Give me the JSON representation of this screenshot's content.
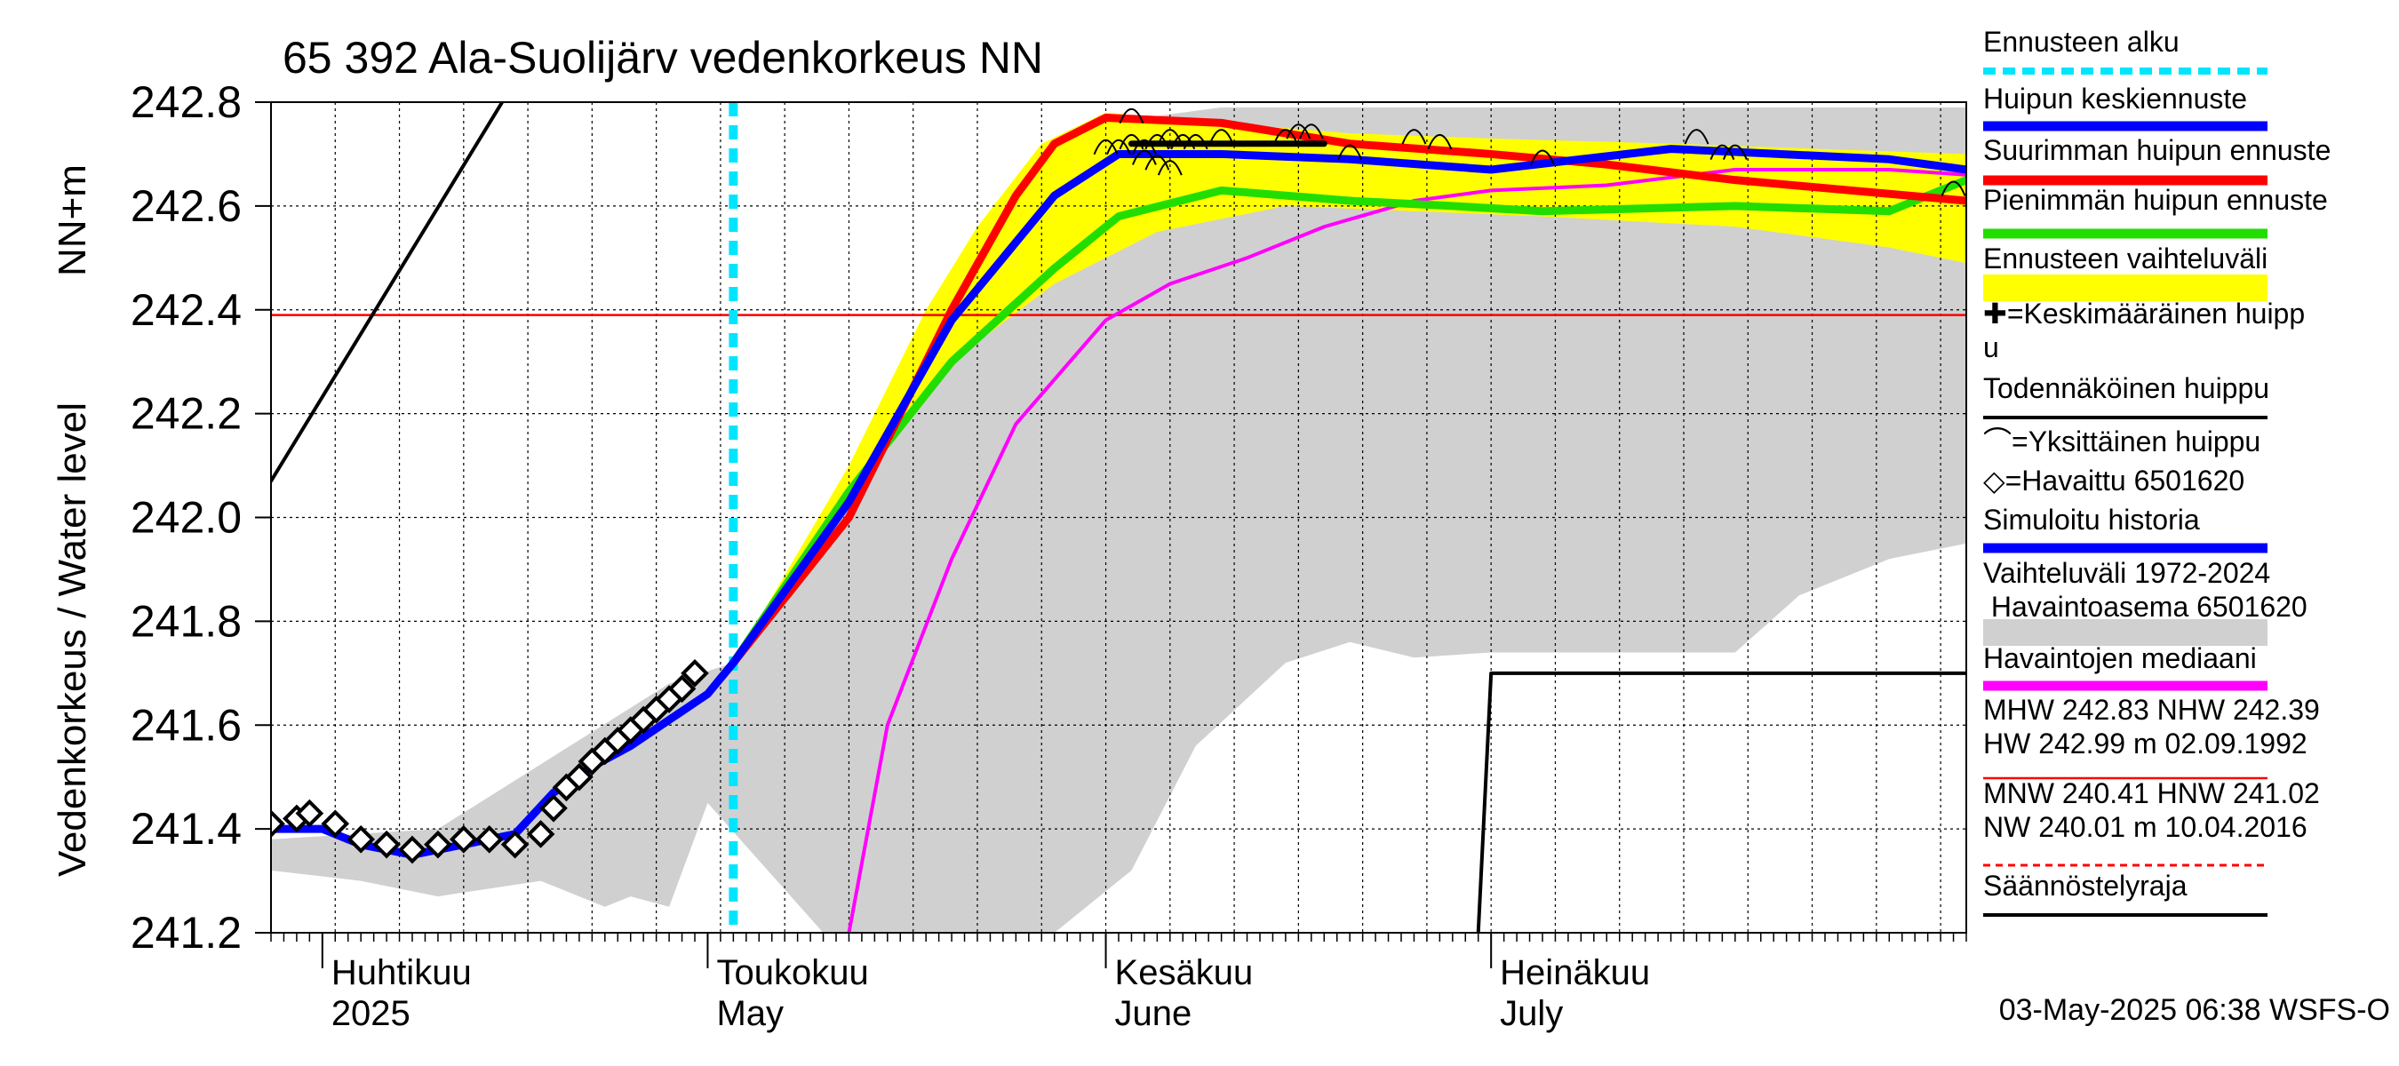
{
  "chart_data": {
    "type": "line",
    "title": "65 392 Ala-Suolijärv vedenkorkeus NN",
    "ylabel": "Vedenkorkeus / Water level",
    "yunit": "NN+m",
    "ylim": [
      241.2,
      242.8
    ],
    "yticks": [
      "242.8",
      "242.6",
      "242.4",
      "242.2",
      "242.0",
      "241.8",
      "241.6",
      "241.4",
      "241.2"
    ],
    "xlim": [
      "2025-03-28",
      "2025-08-07"
    ],
    "months": [
      {
        "fi": "Huhtikuu",
        "en": "2025",
        "date": "2025-04-01"
      },
      {
        "fi": "Toukokuu",
        "en": "May",
        "date": "2025-05-01"
      },
      {
        "fi": "Kesäkuu",
        "en": "June",
        "date": "2025-06-01"
      },
      {
        "fi": "Heinäkuu",
        "en": "July",
        "date": "2025-07-01"
      }
    ],
    "grid": true,
    "legend_position": "right",
    "forecast_start": "2025-05-03",
    "reference_line": {
      "label": "NHW 242.39",
      "value": 242.39,
      "color": "#ff0000"
    },
    "legend": [
      {
        "label": "Ennusteen alku",
        "color": "#00e5ff",
        "style": "dashed"
      },
      {
        "label": "Huipun keskiennuste",
        "color": "#0000ff",
        "style": "line"
      },
      {
        "label": "Suurimman huipun ennuste",
        "color": "#ff0000",
        "style": "line"
      },
      {
        "label": "Pienimmän huipun ennuste",
        "color": "#22dd00",
        "style": "line"
      },
      {
        "label": "Ennusteen vaihteluväli",
        "color": "#ffff00",
        "style": "band"
      },
      {
        "label": "✚=Keskimääräinen huipp u",
        "color": "#000000",
        "style": "none"
      },
      {
        "label": "Todennäköinen huippu",
        "color": "#000000",
        "style": "line"
      },
      {
        "label": "⌒=Yksittäinen huippu",
        "color": "#000000",
        "style": "none"
      },
      {
        "label": "◇=Havaittu 6501620",
        "color": "#000000",
        "style": "none"
      },
      {
        "label": "Simuloitu historia",
        "color": "#0000ff",
        "style": "line"
      },
      {
        "label": "Vaihteluväli 1972-2024 Havaintoasema 6501620",
        "color": "#d0d0d0",
        "style": "band"
      },
      {
        "label": "Havaintojen mediaani",
        "color": "#ff00ff",
        "style": "line"
      },
      {
        "label": "MHW 242.83 NHW 242.39 HW 242.99 m 02.09.1992",
        "color": "#ff0000",
        "style": "thin"
      },
      {
        "label": "MNW 240.41 HNW 241.02 NW 240.01 m 10.04.2016",
        "color": "#ff0000",
        "style": "dotted"
      },
      {
        "label": "Säännöstelyraja",
        "color": "#000000",
        "style": "line"
      }
    ],
    "footer": "03-May-2025 06:38 WSFS-O",
    "series": [
      {
        "key": "history_band_upper",
        "color": "#d0d0d0",
        "x": [
          "2025-03-28",
          "2025-04-10",
          "2025-04-28",
          "2025-05-03",
          "2025-05-10",
          "2025-05-20",
          "2025-05-25",
          "2025-06-01",
          "2025-06-10",
          "2025-06-20",
          "2025-07-01",
          "2025-07-15",
          "2025-08-07"
        ],
        "y": [
          241.38,
          241.4,
          241.68,
          241.72,
          241.98,
          242.35,
          242.52,
          242.76,
          242.79,
          242.79,
          242.79,
          242.79,
          242.79
        ]
      },
      {
        "key": "history_band_lower",
        "color": "#d0d0d0",
        "x": [
          "2025-03-28",
          "2025-04-04",
          "2025-04-10",
          "2025-04-18",
          "2025-04-23",
          "2025-04-25",
          "2025-04-28",
          "2025-05-01",
          "2025-05-10",
          "2025-05-20",
          "2025-05-25",
          "2025-05-28",
          "2025-06-03",
          "2025-06-08",
          "2025-06-15",
          "2025-06-20",
          "2025-06-25",
          "2025-07-01",
          "2025-07-10",
          "2025-07-20",
          "2025-07-25",
          "2025-08-01",
          "2025-08-07"
        ],
        "y": [
          241.32,
          241.3,
          241.27,
          241.3,
          241.25,
          241.27,
          241.25,
          241.45,
          241.2,
          241.2,
          241.2,
          241.2,
          241.32,
          241.56,
          241.72,
          241.76,
          241.73,
          241.74,
          241.74,
          241.74,
          241.85,
          241.92,
          241.95
        ]
      },
      {
        "key": "forecast_band_upper",
        "color": "#ffff00",
        "x": [
          "2025-05-03",
          "2025-05-12",
          "2025-05-18",
          "2025-05-22",
          "2025-05-27",
          "2025-06-01",
          "2025-06-10",
          "2025-06-20",
          "2025-07-01",
          "2025-07-15",
          "2025-08-07"
        ],
        "y": [
          241.72,
          242.1,
          242.4,
          242.56,
          242.72,
          242.78,
          242.76,
          242.74,
          242.73,
          242.72,
          242.7
        ]
      },
      {
        "key": "forecast_band_lower",
        "color": "#ffff00",
        "x": [
          "2025-05-03",
          "2025-05-12",
          "2025-05-20",
          "2025-05-28",
          "2025-06-05",
          "2025-06-15",
          "2025-06-25",
          "2025-07-05",
          "2025-07-20",
          "2025-08-01",
          "2025-08-07"
        ],
        "y": [
          241.72,
          242.05,
          242.3,
          242.45,
          242.55,
          242.6,
          242.59,
          242.58,
          242.56,
          242.52,
          242.49
        ]
      },
      {
        "key": "median",
        "color": "#ff00ff",
        "x": [
          "2025-05-12",
          "2025-05-15",
          "2025-05-20",
          "2025-05-25",
          "2025-06-01",
          "2025-06-06",
          "2025-06-12",
          "2025-06-18",
          "2025-06-25",
          "2025-07-01",
          "2025-07-10",
          "2025-07-20",
          "2025-08-01",
          "2025-08-07"
        ],
        "y": [
          241.2,
          241.6,
          241.92,
          242.18,
          242.38,
          242.45,
          242.5,
          242.56,
          242.61,
          242.63,
          242.64,
          242.67,
          242.67,
          242.66
        ]
      },
      {
        "key": "regulation_limit",
        "color": "#000000",
        "x": [
          "2025-06-30",
          "2025-07-01",
          "2025-08-07"
        ],
        "y": [
          241.2,
          241.7,
          241.7
        ]
      },
      {
        "key": "probable_peak_trend",
        "color": "#000000",
        "x": [
          "2025-03-28",
          "2025-04-15"
        ],
        "y": [
          242.07,
          242.8
        ]
      },
      {
        "key": "probable_peak_bar",
        "color": "#000000",
        "x": [
          "2025-06-03",
          "2025-06-18"
        ],
        "y": [
          242.72,
          242.72
        ]
      },
      {
        "key": "max_peak_forecast",
        "color": "#ff0000",
        "x": [
          "2025-05-03",
          "2025-05-12",
          "2025-05-20",
          "2025-05-25",
          "2025-05-28",
          "2025-06-01",
          "2025-06-10",
          "2025-06-20",
          "2025-07-01",
          "2025-07-10",
          "2025-07-20",
          "2025-08-07"
        ],
        "y": [
          241.72,
          242.0,
          242.4,
          242.62,
          242.72,
          242.77,
          242.76,
          242.72,
          242.7,
          242.68,
          242.65,
          242.61
        ]
      },
      {
        "key": "min_peak_forecast",
        "color": "#22dd00",
        "x": [
          "2025-05-03",
          "2025-05-12",
          "2025-05-20",
          "2025-05-28",
          "2025-06-02",
          "2025-06-10",
          "2025-06-20",
          "2025-06-28",
          "2025-07-05",
          "2025-07-20",
          "2025-08-01",
          "2025-08-07"
        ],
        "y": [
          241.72,
          242.05,
          242.3,
          242.48,
          242.58,
          242.63,
          242.61,
          242.6,
          242.59,
          242.6,
          242.59,
          242.65
        ]
      },
      {
        "key": "mean_peak_forecast",
        "color": "#0000ff",
        "x": [
          "2025-05-03",
          "2025-05-12",
          "2025-05-20",
          "2025-05-28",
          "2025-06-02",
          "2025-06-10",
          "2025-06-20",
          "2025-07-01",
          "2025-07-15",
          "2025-08-01",
          "2025-08-07"
        ],
        "y": [
          241.72,
          242.03,
          242.38,
          242.62,
          242.7,
          242.7,
          242.69,
          242.67,
          242.71,
          242.69,
          242.67
        ]
      },
      {
        "key": "simulated_history",
        "color": "#0000ff",
        "x": [
          "2025-03-28",
          "2025-03-30",
          "2025-04-01",
          "2025-04-04",
          "2025-04-08",
          "2025-04-12",
          "2025-04-16",
          "2025-04-19",
          "2025-04-22",
          "2025-04-25",
          "2025-04-28",
          "2025-05-01",
          "2025-05-03"
        ],
        "y": [
          241.4,
          241.4,
          241.4,
          241.37,
          241.35,
          241.37,
          241.39,
          241.47,
          241.52,
          241.56,
          241.61,
          241.66,
          241.72
        ]
      }
    ],
    "observed_6501620": {
      "x": [
        "2025-03-28",
        "2025-03-30",
        "2025-03-31",
        "2025-04-02",
        "2025-04-04",
        "2025-04-06",
        "2025-04-08",
        "2025-04-10",
        "2025-04-12",
        "2025-04-14",
        "2025-04-16",
        "2025-04-18",
        "2025-04-19",
        "2025-04-20",
        "2025-04-21",
        "2025-04-22",
        "2025-04-23",
        "2025-04-24",
        "2025-04-25",
        "2025-04-26",
        "2025-04-27",
        "2025-04-28",
        "2025-04-29",
        "2025-04-30"
      ],
      "y": [
        241.41,
        241.42,
        241.43,
        241.41,
        241.38,
        241.37,
        241.36,
        241.37,
        241.38,
        241.38,
        241.37,
        241.39,
        241.44,
        241.48,
        241.5,
        241.53,
        241.55,
        241.57,
        241.59,
        241.61,
        241.63,
        241.65,
        241.67,
        241.7
      ]
    },
    "individual_peaks": {
      "x": [
        "2025-06-01",
        "2025-06-02",
        "2025-06-03",
        "2025-06-04",
        "2025-06-05",
        "2025-06-06",
        "2025-06-07",
        "2025-06-08",
        "2025-06-03",
        "2025-06-04",
        "2025-06-05",
        "2025-06-06",
        "2025-06-10",
        "2025-06-15",
        "2025-06-16",
        "2025-06-17",
        "2025-06-20",
        "2025-06-25",
        "2025-06-27",
        "2025-07-05",
        "2025-07-17",
        "2025-07-19",
        "2025-07-20",
        "2025-08-06"
      ],
      "y": [
        242.72,
        242.72,
        242.73,
        242.72,
        242.73,
        242.74,
        242.73,
        242.73,
        242.78,
        242.7,
        242.69,
        242.68,
        242.74,
        242.74,
        242.75,
        242.75,
        242.71,
        242.74,
        242.73,
        242.7,
        242.74,
        242.71,
        242.71,
        242.64
      ]
    }
  }
}
